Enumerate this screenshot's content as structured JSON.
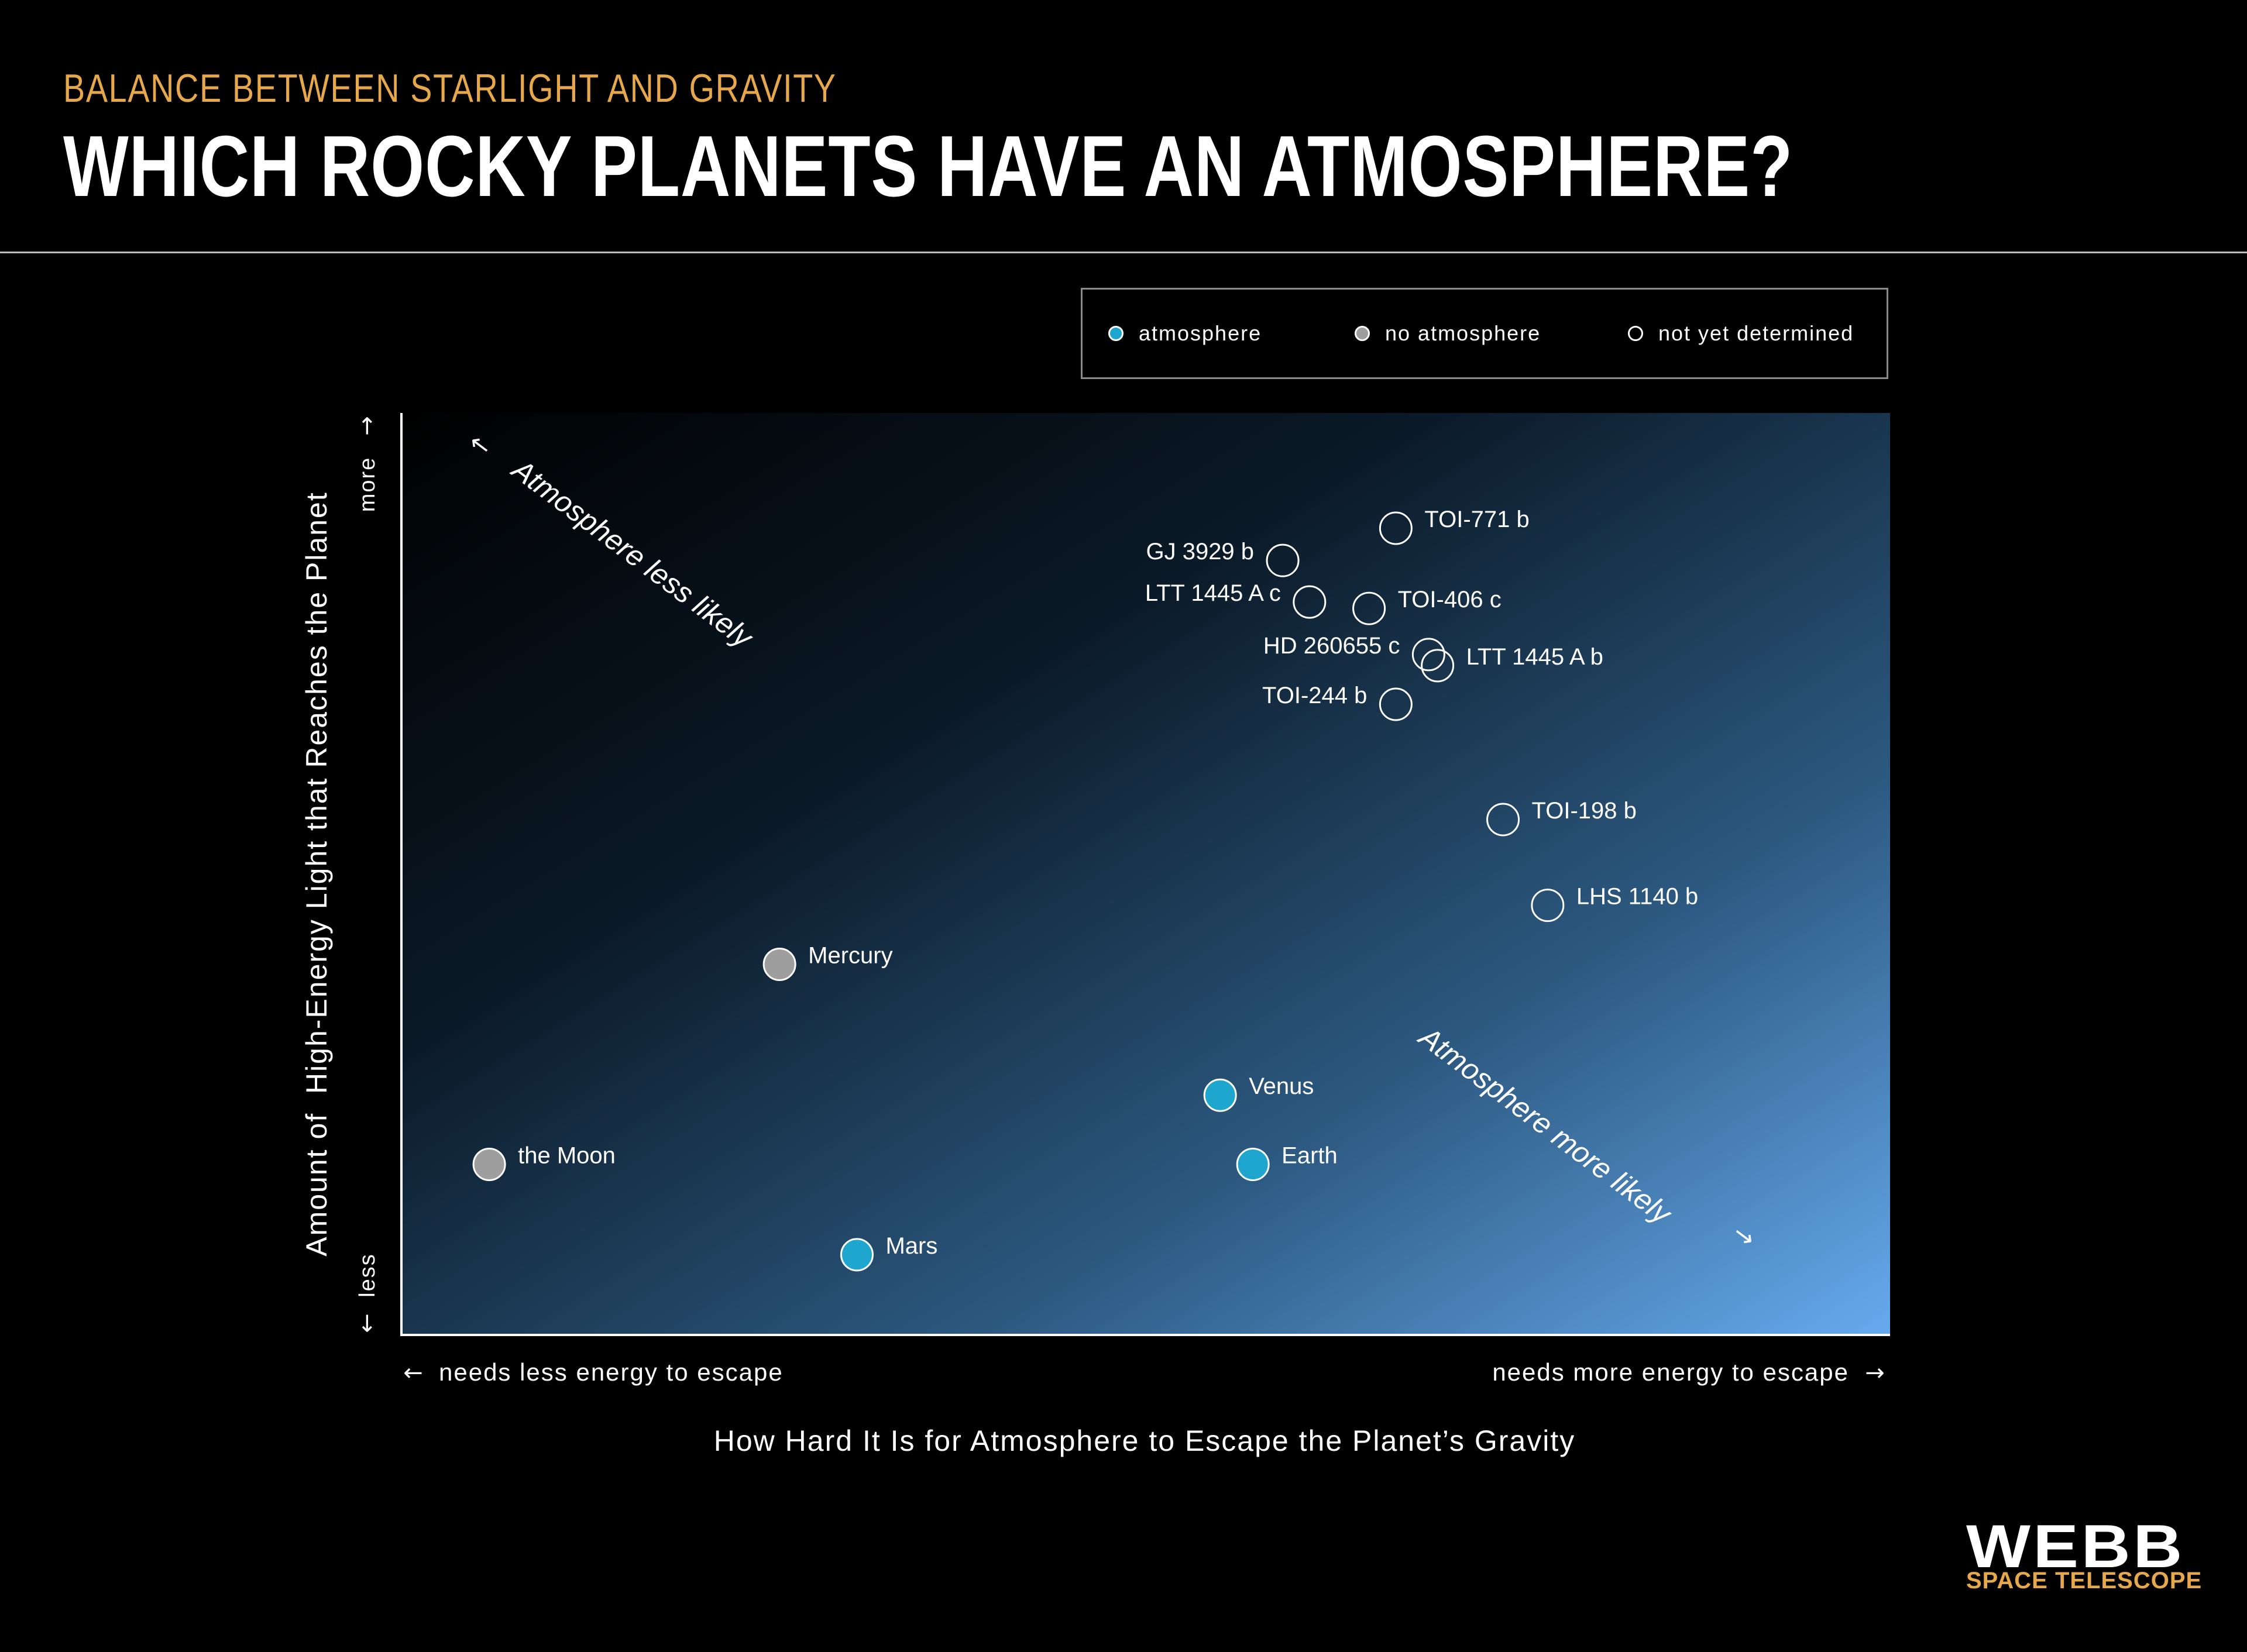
{
  "header": {
    "kicker": "BALANCE BETWEEN STARLIGHT AND GRAVITY",
    "title": "WHICH ROCKY PLANETS HAVE AN ATMOSPHERE?"
  },
  "legend": {
    "items": [
      {
        "label": "atmosphere",
        "status": "atmosphere",
        "fill": "#1fa6cf",
        "stroke": "#1fa6cf"
      },
      {
        "label": "no atmosphere",
        "status": "no-atmosphere",
        "fill": "#9e9e9e",
        "stroke": "#9e9e9e"
      },
      {
        "label": "not yet determined",
        "status": "not-determined",
        "fill": "none",
        "stroke": "#ffffff"
      }
    ]
  },
  "chart_data": {
    "type": "scatter",
    "title": "",
    "xlabel": "How Hard It Is for Atmosphere to Escape the Planet’s Gravity",
    "ylabel": "Amount of  High-Energy Light that Reaches the Planet",
    "x_low_label": "needs less energy to escape",
    "x_high_label": "needs more energy to escape",
    "y_low_label": "less",
    "y_high_label": "more",
    "xlim": [
      0,
      100
    ],
    "ylim": [
      0,
      100
    ],
    "axis_note": "qualitative axes, no numeric tick labels",
    "gradient": {
      "from": "#000000",
      "to": "#66aaee",
      "direction": "top-left to bottom-right"
    },
    "annotations": [
      {
        "text": "Atmosphere less likely",
        "direction": "up-left"
      },
      {
        "text": "Atmosphere more likely",
        "direction": "down-right"
      }
    ],
    "points": [
      {
        "name": "TOI-771 b",
        "x": 66.8,
        "y": 87.5,
        "status": "not-determined",
        "label_side": "right"
      },
      {
        "name": "GJ 3929 b",
        "x": 59.2,
        "y": 84.0,
        "status": "not-determined",
        "label_side": "left"
      },
      {
        "name": "LTT 1445 A c",
        "x": 61.0,
        "y": 79.5,
        "status": "not-determined",
        "label_side": "left"
      },
      {
        "name": "TOI-406 c",
        "x": 65.0,
        "y": 78.8,
        "status": "not-determined",
        "label_side": "right"
      },
      {
        "name": "HD 260655 c",
        "x": 69.0,
        "y": 73.8,
        "status": "not-determined",
        "label_side": "left"
      },
      {
        "name": "LTT 1445 A b",
        "x": 69.6,
        "y": 72.6,
        "status": "not-determined",
        "label_side": "right"
      },
      {
        "name": "TOI-244 b",
        "x": 66.8,
        "y": 68.4,
        "status": "not-determined",
        "label_side": "left"
      },
      {
        "name": "TOI-198 b",
        "x": 74.0,
        "y": 55.9,
        "status": "not-determined",
        "label_side": "right"
      },
      {
        "name": "LHS 1140 b",
        "x": 77.0,
        "y": 46.6,
        "status": "not-determined",
        "label_side": "right"
      },
      {
        "name": "Mercury",
        "x": 25.4,
        "y": 40.2,
        "status": "no-atmosphere",
        "label_side": "right"
      },
      {
        "name": "Venus",
        "x": 55.0,
        "y": 26.0,
        "status": "atmosphere",
        "label_side": "right"
      },
      {
        "name": "Earth",
        "x": 57.2,
        "y": 18.5,
        "status": "atmosphere",
        "label_side": "right"
      },
      {
        "name": "the Moon",
        "x": 5.9,
        "y": 18.5,
        "status": "no-atmosphere",
        "label_side": "right"
      },
      {
        "name": "Mars",
        "x": 30.6,
        "y": 8.7,
        "status": "atmosphere",
        "label_side": "right"
      }
    ]
  },
  "branding": {
    "logo_main": "WEBB",
    "logo_sub": "SPACE TELESCOPE"
  },
  "colors": {
    "accent": "#e6a84a",
    "atmosphere": "#1fa6cf",
    "no_atmosphere": "#9e9e9e",
    "not_determined": "#ffffff"
  }
}
